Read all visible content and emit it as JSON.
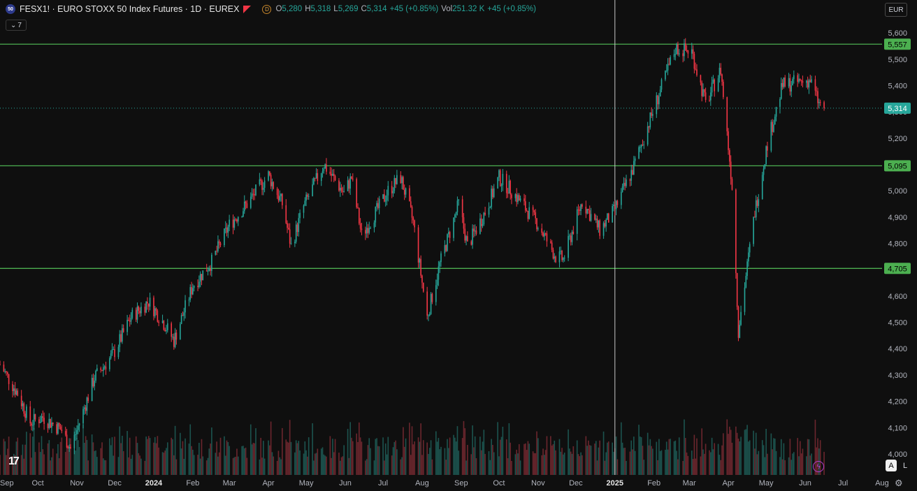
{
  "header": {
    "symbol_badge": "50",
    "title": "FESX1! · EURO STOXX 50 Index Futures · 1D · EUREX",
    "d_badge": "D",
    "ohlc": [
      {
        "k": "O",
        "v": "5,280"
      },
      {
        "k": "H",
        "v": "5,318"
      },
      {
        "k": "L",
        "v": "5,269"
      },
      {
        "k": "C",
        "v": "5,314"
      },
      {
        "k": "",
        "v": "+45 (+0.85%)"
      },
      {
        "k": "Vol",
        "v": "251.32 K"
      },
      {
        "k": "",
        "v": "+45 (+0.85%)"
      }
    ],
    "indicator_count": "7",
    "currency": "EUR"
  },
  "controls": {
    "auto_label": "A",
    "log_label": "L"
  },
  "colors": {
    "background": "#0f0f0f",
    "up": "#26a69a",
    "down": "#f23645",
    "level_line": "#4caf50",
    "price_line": "#26a69a",
    "crosshair": "#c9c9c9"
  },
  "chart_data": {
    "type": "candlestick",
    "y_axis": {
      "min": 3960,
      "max": 5640,
      "ticks": [
        4000,
        4100,
        4200,
        4300,
        4400,
        4500,
        4600,
        4700,
        4800,
        4900,
        5000,
        5100,
        5200,
        5300,
        5400,
        5500,
        5600
      ],
      "tick_labels": [
        "4,000",
        "4,100",
        "4,200",
        "4,300",
        "4,400",
        "4,500",
        "4,600",
        "4,700",
        "4,800",
        "4,900",
        "5,000",
        "5,100",
        "5,200",
        "5,300",
        "5,400",
        "5,500",
        "5,600"
      ]
    },
    "x_axis": {
      "labels": [
        "Sep",
        "Oct",
        "Nov",
        "Dec",
        "2024",
        "Feb",
        "Mar",
        "Apr",
        "May",
        "Jun",
        "Jul",
        "Aug",
        "Sep",
        "Oct",
        "Nov",
        "Dec",
        "2025",
        "Feb",
        "Mar",
        "Apr",
        "May",
        "Jun",
        "Jul",
        "Aug"
      ],
      "bold": [
        "2024",
        "2025"
      ],
      "start": "2023-09-01",
      "end": "2025-08-01"
    },
    "horizontal_levels": [
      {
        "value": 5557,
        "label": "5,557"
      },
      {
        "value": 5095,
        "label": "5,095"
      },
      {
        "value": 4705,
        "label": "4,705"
      }
    ],
    "last_price": {
      "value": 5314,
      "label": "5,314"
    },
    "crosshair_date": "2025-01-01",
    "close_path": [
      [
        "2023-09-01",
        4340
      ],
      [
        "2023-09-15",
        4230
      ],
      [
        "2023-09-25",
        4120
      ],
      [
        "2023-10-05",
        4140
      ],
      [
        "2023-10-20",
        4090
      ],
      [
        "2023-10-27",
        4020
      ],
      [
        "2023-11-15",
        4290
      ],
      [
        "2023-11-30",
        4380
      ],
      [
        "2023-12-14",
        4520
      ],
      [
        "2023-12-28",
        4580
      ],
      [
        "2024-01-10",
        4490
      ],
      [
        "2024-01-17",
        4430
      ],
      [
        "2024-02-01",
        4640
      ],
      [
        "2024-02-16",
        4730
      ],
      [
        "2024-03-01",
        4870
      ],
      [
        "2024-03-15",
        4950
      ],
      [
        "2024-04-01",
        5060
      ],
      [
        "2024-04-12",
        4950
      ],
      [
        "2024-04-19",
        4790
      ],
      [
        "2024-04-29",
        4940
      ],
      [
        "2024-05-15",
        5100
      ],
      [
        "2024-05-31",
        4990
      ],
      [
        "2024-06-06",
        5050
      ],
      [
        "2024-06-14",
        4830
      ],
      [
        "2024-06-28",
        4940
      ],
      [
        "2024-07-05",
        5000
      ],
      [
        "2024-07-15",
        5050
      ],
      [
        "2024-07-25",
        4880
      ],
      [
        "2024-08-05",
        4520
      ],
      [
        "2024-08-15",
        4720
      ],
      [
        "2024-08-30",
        4950
      ],
      [
        "2024-09-06",
        4790
      ],
      [
        "2024-09-20",
        4920
      ],
      [
        "2024-10-01",
        5050
      ],
      [
        "2024-10-11",
        5000
      ],
      [
        "2024-10-31",
        4880
      ],
      [
        "2024-11-15",
        4750
      ],
      [
        "2024-11-21",
        4740
      ],
      [
        "2024-12-06",
        4960
      ],
      [
        "2024-12-20",
        4850
      ],
      [
        "2024-12-31",
        4920
      ],
      [
        "2025-01-15",
        5080
      ],
      [
        "2025-01-31",
        5300
      ],
      [
        "2025-02-18",
        5540
      ],
      [
        "2025-03-03",
        5530
      ],
      [
        "2025-03-14",
        5330
      ],
      [
        "2025-03-26",
        5460
      ],
      [
        "2025-04-04",
        5020
      ],
      [
        "2025-04-09",
        4470
      ],
      [
        "2025-04-22",
        4920
      ],
      [
        "2025-05-02",
        5180
      ],
      [
        "2025-05-14",
        5400
      ],
      [
        "2025-05-23",
        5410
      ],
      [
        "2025-06-05",
        5420
      ],
      [
        "2025-06-12",
        5330
      ],
      [
        "2025-06-16",
        5314
      ]
    ]
  }
}
